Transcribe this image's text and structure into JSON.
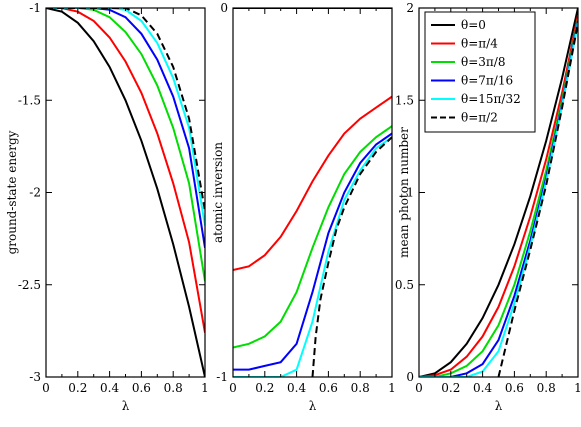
{
  "legend": {
    "entries": [
      {
        "label": "θ=0",
        "color": "#000000",
        "dash": false
      },
      {
        "label": "θ=π/4",
        "color": "#ff0000",
        "dash": false
      },
      {
        "label": "θ=3π/8",
        "color": "#00dd00",
        "dash": false
      },
      {
        "label": "θ=7π/16",
        "color": "#0000ff",
        "dash": false
      },
      {
        "label": "θ=15π/32",
        "color": "#00ffff",
        "dash": false
      },
      {
        "label": "θ=π/2",
        "color": "#000000",
        "dash": true
      }
    ],
    "placement": "top-right of third panel"
  },
  "chart_data": [
    {
      "type": "line",
      "xlabel": "λ",
      "ylabel": "ground-state energy",
      "xlim": [
        0,
        1
      ],
      "ylim": [
        -3,
        -1
      ],
      "xticks": [
        "0",
        "0.2",
        "0.4",
        "0.6",
        "0.8",
        "1"
      ],
      "yticks": [
        "-1",
        "-1.5",
        "-2",
        "-2.5",
        "-3"
      ],
      "ytick_values": [
        -1,
        -1.5,
        -2,
        -2.5,
        -3
      ],
      "x": [
        0,
        0.1,
        0.2,
        0.3,
        0.4,
        0.5,
        0.6,
        0.7,
        0.8,
        0.9,
        1.0
      ],
      "series": [
        {
          "name": "θ=0",
          "values": [
            -1.0,
            -1.02,
            -1.08,
            -1.18,
            -1.32,
            -1.5,
            -1.72,
            -1.98,
            -2.28,
            -2.62,
            -3.0
          ]
        },
        {
          "name": "θ=π/4",
          "values": [
            -1.0,
            -1.0,
            -1.02,
            -1.07,
            -1.16,
            -1.29,
            -1.46,
            -1.68,
            -1.95,
            -2.27,
            -2.76
          ]
        },
        {
          "name": "θ=3π/8",
          "values": [
            -1.0,
            -1.0,
            -1.0,
            -1.01,
            -1.05,
            -1.13,
            -1.25,
            -1.42,
            -1.65,
            -1.95,
            -2.48
          ]
        },
        {
          "name": "θ=7π/16",
          "values": [
            -1.0,
            -1.0,
            -1.0,
            -1.0,
            -1.01,
            -1.05,
            -1.14,
            -1.28,
            -1.48,
            -1.76,
            -2.3
          ]
        },
        {
          "name": "θ=15π/32",
          "values": [
            -1.0,
            -1.0,
            -1.0,
            -1.0,
            -1.0,
            -1.01,
            -1.07,
            -1.19,
            -1.38,
            -1.65,
            -2.18
          ]
        },
        {
          "name": "θ=π/2",
          "values": [
            -1.0,
            -1.0,
            -1.0,
            -1.0,
            -1.0,
            -1.0,
            -1.04,
            -1.14,
            -1.32,
            -1.6,
            -2.1
          ]
        }
      ]
    },
    {
      "type": "line",
      "xlabel": "λ",
      "ylabel": "atomic inversion",
      "xlim": [
        0,
        1
      ],
      "ylim": [
        -1,
        0
      ],
      "xticks": [
        "0",
        "0.2",
        "0.4",
        "0.6",
        "0.8",
        "1"
      ],
      "yticks": [
        "0",
        "-1"
      ],
      "ytick_values": [
        0,
        -1
      ],
      "x": [
        0,
        0.1,
        0.2,
        0.3,
        0.4,
        0.5,
        0.6,
        0.7,
        0.8,
        0.9,
        1.0
      ],
      "series": [
        {
          "name": "θ=0",
          "values": [
            0,
            0,
            0,
            0,
            0,
            0,
            0,
            0,
            0,
            0,
            0
          ]
        },
        {
          "name": "θ=π/4",
          "values": [
            -0.71,
            -0.7,
            -0.67,
            -0.62,
            -0.55,
            -0.47,
            -0.4,
            -0.34,
            -0.3,
            -0.27,
            -0.24
          ]
        },
        {
          "name": "θ=3π/8",
          "values": [
            -0.92,
            -0.91,
            -0.89,
            -0.85,
            -0.77,
            -0.65,
            -0.54,
            -0.45,
            -0.39,
            -0.35,
            -0.32
          ]
        },
        {
          "name": "θ=7π/16",
          "values": [
            -0.98,
            -0.98,
            -0.97,
            -0.96,
            -0.91,
            -0.77,
            -0.61,
            -0.5,
            -0.42,
            -0.37,
            -0.34
          ]
        },
        {
          "name": "θ=15π/32",
          "values": [
            -1.0,
            -1.0,
            -1.0,
            -1.0,
            -0.98,
            -0.85,
            -0.66,
            -0.52,
            -0.44,
            -0.38,
            -0.35
          ]
        },
        {
          "name": "θ=π/2",
          "x": [
            0.5,
            0.52,
            0.55,
            0.6,
            0.65,
            0.7,
            0.8,
            0.9,
            1.0
          ],
          "values": [
            -1.0,
            -0.89,
            -0.79,
            -0.69,
            -0.6,
            -0.54,
            -0.45,
            -0.39,
            -0.35
          ]
        }
      ]
    },
    {
      "type": "line",
      "xlabel": "λ",
      "ylabel": "mean photon number",
      "xlim": [
        0,
        1
      ],
      "ylim": [
        0,
        2
      ],
      "xticks": [
        "0",
        "0.2",
        "0.4",
        "0.6",
        "0.8",
        "1"
      ],
      "yticks": [
        "0",
        "0.5",
        "1",
        "1.5",
        "2"
      ],
      "ytick_values": [
        0,
        0.5,
        1,
        1.5,
        2
      ],
      "x": [
        0,
        0.1,
        0.2,
        0.3,
        0.4,
        0.5,
        0.6,
        0.7,
        0.8,
        0.9,
        1.0
      ],
      "series": [
        {
          "name": "θ=0",
          "values": [
            0,
            0.02,
            0.08,
            0.18,
            0.32,
            0.5,
            0.72,
            0.98,
            1.28,
            1.62,
            2.0
          ]
        },
        {
          "name": "θ=π/4",
          "values": [
            0,
            0.01,
            0.04,
            0.11,
            0.22,
            0.38,
            0.6,
            0.87,
            1.18,
            1.54,
            1.96
          ]
        },
        {
          "name": "θ=3π/8",
          "values": [
            0,
            0.0,
            0.02,
            0.06,
            0.14,
            0.28,
            0.5,
            0.79,
            1.12,
            1.5,
            1.94
          ]
        },
        {
          "name": "θ=7π/16",
          "values": [
            0,
            0.0,
            0.0,
            0.02,
            0.07,
            0.2,
            0.44,
            0.74,
            1.08,
            1.48,
            1.93
          ]
        },
        {
          "name": "θ=15π/32",
          "values": [
            0,
            0.0,
            0.0,
            0.0,
            0.03,
            0.14,
            0.4,
            0.71,
            1.06,
            1.47,
            1.92
          ]
        },
        {
          "name": "θ=π/2",
          "x": [
            0.5,
            0.6,
            0.7,
            0.8,
            0.9,
            1.0
          ],
          "values": [
            0.0,
            0.36,
            0.69,
            1.04,
            1.46,
            1.92
          ]
        }
      ]
    }
  ]
}
